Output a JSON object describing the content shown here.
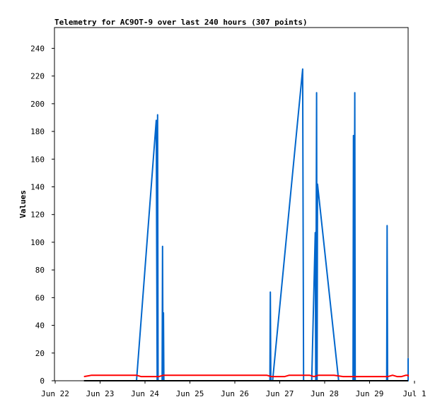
{
  "chart_data": {
    "type": "line",
    "title": "Telemetry for AC9OT-9 over last 240 hours (307 points)",
    "ylabel": "Values",
    "xlabel": "",
    "ylim": [
      0,
      255
    ],
    "yticks": [
      0,
      20,
      40,
      60,
      80,
      100,
      120,
      140,
      160,
      180,
      200,
      220,
      240
    ],
    "xlim": [
      0,
      8.4
    ],
    "xticks": [
      {
        "x": 0,
        "label": "Jun 22"
      },
      {
        "x": 1,
        "label": "Jun 23"
      },
      {
        "x": 2,
        "label": "Jun 24"
      },
      {
        "x": 3,
        "label": "Jun 25"
      },
      {
        "x": 4,
        "label": "Jun 26"
      },
      {
        "x": 5,
        "label": "Jun 27"
      },
      {
        "x": 6,
        "label": "Jun 28"
      },
      {
        "x": 7,
        "label": "Jun 29"
      },
      {
        "x": 8,
        "label": "Jul 1"
      }
    ],
    "grid": false,
    "legend": "none",
    "colors": {
      "blue": "#0066cc",
      "red": "#ff0000",
      "black": "#000000"
    },
    "series": [
      {
        "color": "#0066cc",
        "points": [
          [
            0.87,
            0
          ],
          [
            2.0,
            0
          ],
          [
            2.44,
            188
          ],
          [
            2.46,
            0
          ],
          [
            2.47,
            192
          ],
          [
            2.48,
            0
          ],
          [
            2.57,
            0
          ],
          [
            2.58,
            97
          ],
          [
            2.59,
            0
          ],
          [
            2.6,
            49
          ],
          [
            2.61,
            0
          ],
          [
            4.97,
            0
          ],
          [
            4.98,
            64
          ],
          [
            4.99,
            0
          ],
          [
            5.03,
            0
          ],
          [
            5.7,
            225
          ],
          [
            5.72,
            0
          ],
          [
            5.9,
            0
          ],
          [
            5.98,
            107
          ],
          [
            5.99,
            0
          ],
          [
            6.01,
            208
          ],
          [
            6.02,
            0
          ],
          [
            6.03,
            142
          ],
          [
            6.5,
            0
          ],
          [
            6.82,
            0
          ],
          [
            6.83,
            177
          ],
          [
            6.84,
            0
          ],
          [
            6.86,
            208
          ],
          [
            6.87,
            0
          ],
          [
            7.57,
            0
          ],
          [
            7.58,
            112
          ],
          [
            7.59,
            0
          ],
          [
            8.45,
            0
          ],
          [
            8.46,
            16
          ],
          [
            8.47,
            0
          ],
          [
            8.55,
            0
          ]
        ]
      },
      {
        "color": "#ff0000",
        "points": [
          [
            0.83,
            3
          ],
          [
            1.0,
            4
          ],
          [
            2.0,
            4
          ],
          [
            2.1,
            3
          ],
          [
            2.5,
            3
          ],
          [
            2.6,
            4
          ],
          [
            4.0,
            4
          ],
          [
            4.9,
            4
          ],
          [
            5.0,
            3
          ],
          [
            5.3,
            3
          ],
          [
            5.4,
            4
          ],
          [
            5.85,
            4
          ],
          [
            5.95,
            3
          ],
          [
            6.05,
            4
          ],
          [
            6.4,
            4
          ],
          [
            6.6,
            3
          ],
          [
            7.6,
            3
          ],
          [
            7.7,
            4
          ],
          [
            7.8,
            3
          ],
          [
            7.9,
            3
          ],
          [
            8.0,
            4
          ],
          [
            8.4,
            4
          ],
          [
            8.5,
            3
          ],
          [
            8.55,
            3
          ]
        ]
      },
      {
        "color": "#000000",
        "points": [
          [
            0.83,
            0
          ],
          [
            8.55,
            0
          ]
        ]
      }
    ]
  }
}
